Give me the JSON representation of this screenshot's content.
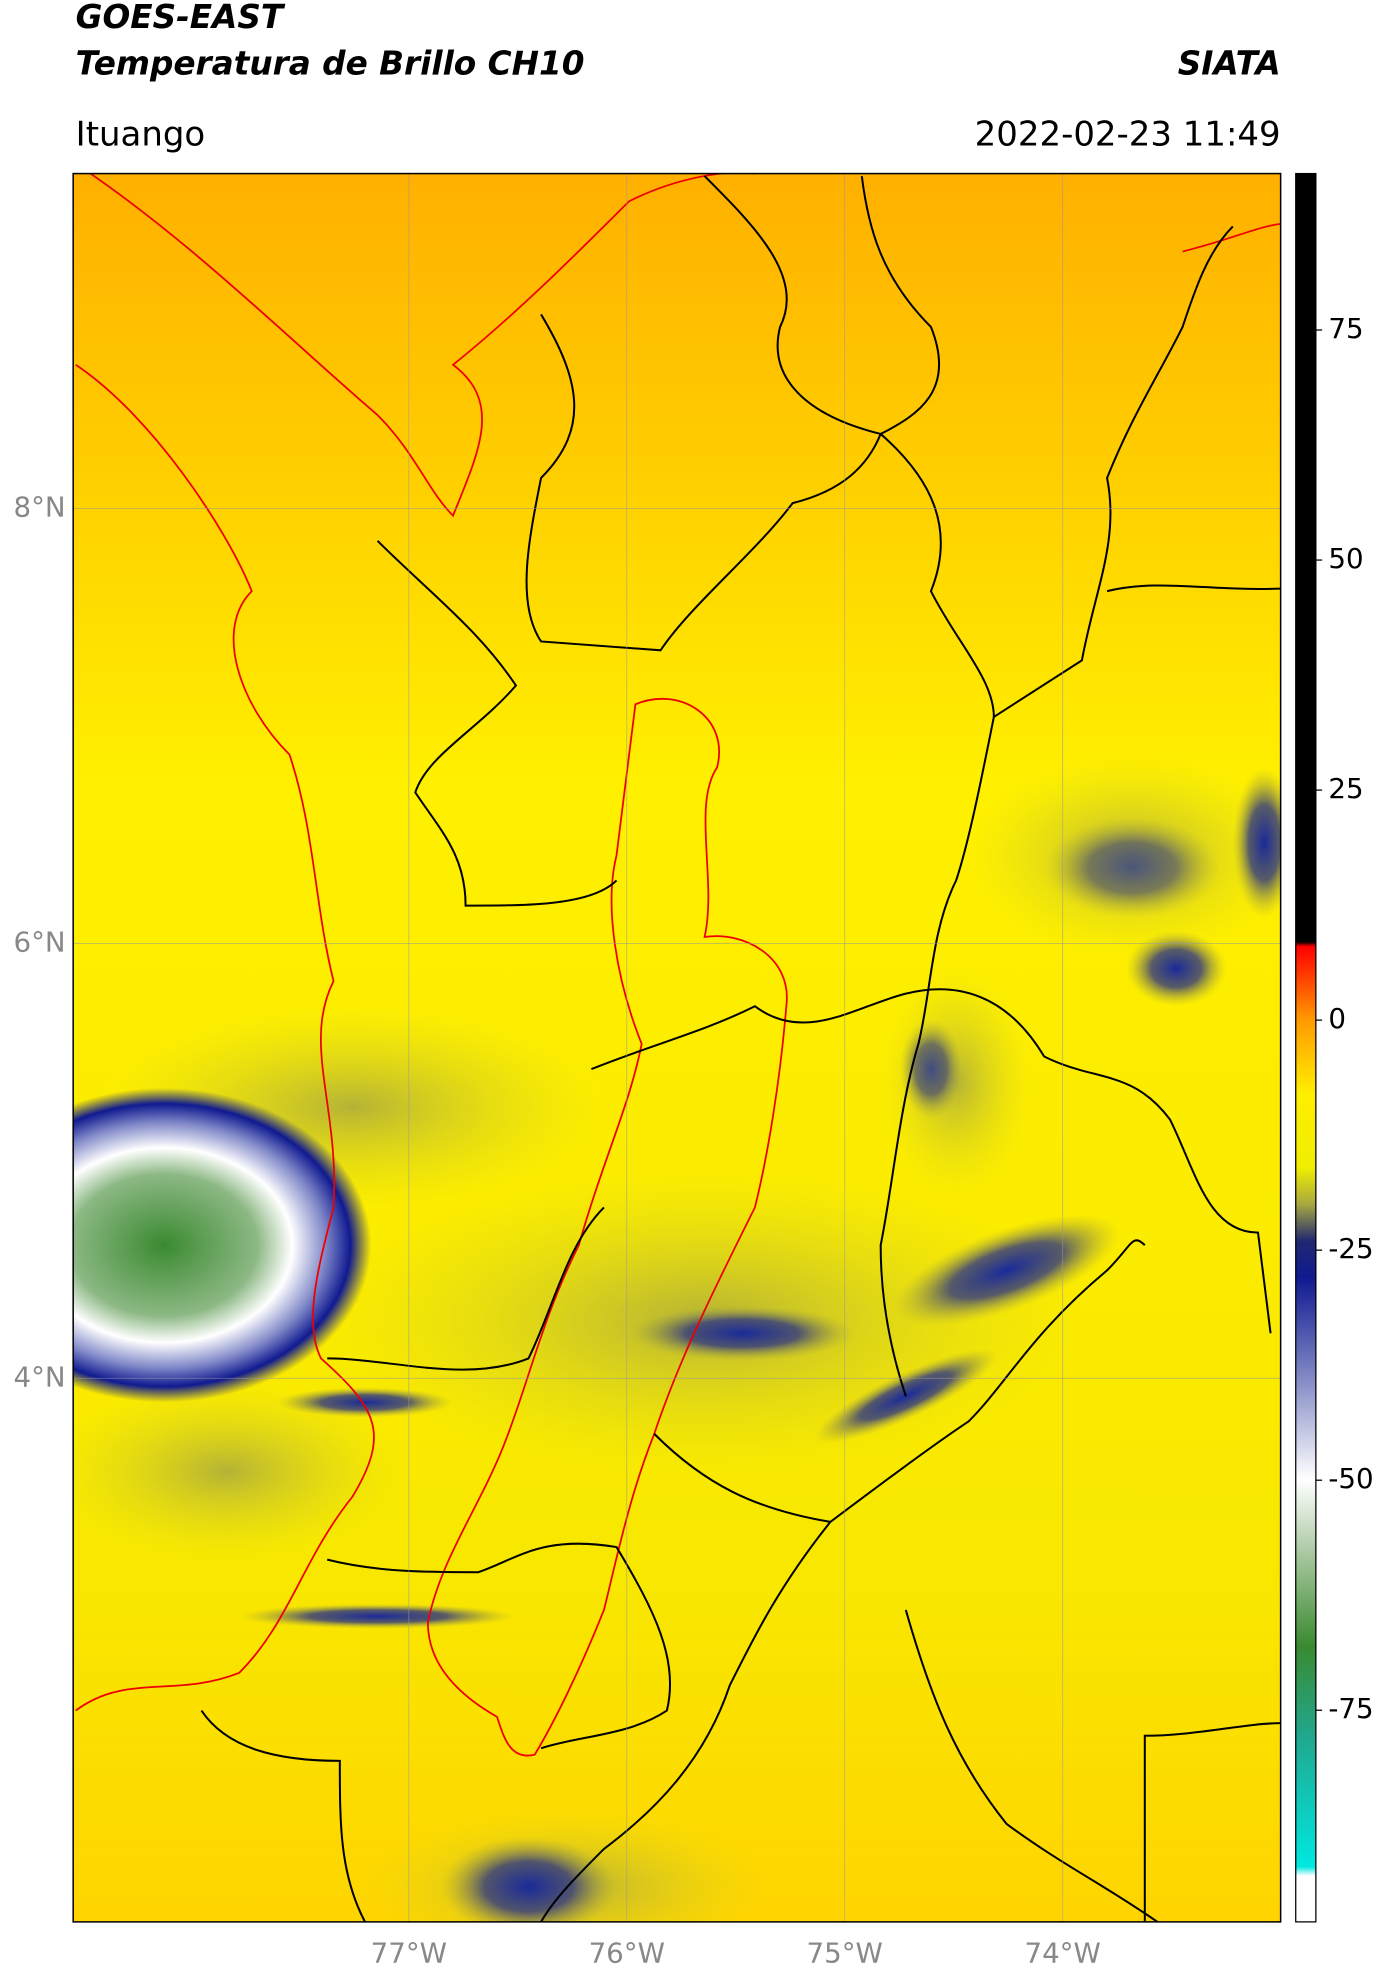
{
  "chart_data": {
    "type": "map",
    "title": "GOES-EAST",
    "subtitle": "Temperatura de Brillo CH10",
    "source": "SIATA",
    "location": "Ituango",
    "datetime": "2022-02-23 11:49",
    "xlim": [
      -78.54,
      -73.0
    ],
    "ylim": [
      1.5,
      9.54
    ],
    "xticks": [
      {
        "value": -77,
        "label": "77°W"
      },
      {
        "value": -76,
        "label": "76°W"
      },
      {
        "value": -75,
        "label": "75°W"
      },
      {
        "value": -74,
        "label": "74°W"
      }
    ],
    "yticks": [
      {
        "value": 4,
        "label": "4°N"
      },
      {
        "value": 6,
        "label": "6°N"
      },
      {
        "value": 8,
        "label": "8°N"
      }
    ],
    "grid": true,
    "colorbar": {
      "clim": [
        -98,
        92
      ],
      "ticks": [
        75,
        50,
        25,
        0,
        -25,
        -50,
        -75
      ],
      "colormap": [
        {
          "value": 92,
          "color": "#000000"
        },
        {
          "value": 8.5,
          "color": "#000000"
        },
        {
          "value": 8,
          "color": "#ff0000"
        },
        {
          "value": 0,
          "color": "#ff9a00"
        },
        {
          "value": -8,
          "color": "#ffee00"
        },
        {
          "value": -16,
          "color": "#f0ee00"
        },
        {
          "value": -20,
          "color": "#a8a840"
        },
        {
          "value": -24,
          "color": "#202870"
        },
        {
          "value": -28,
          "color": "#101a90"
        },
        {
          "value": -38,
          "color": "#7880c0"
        },
        {
          "value": -50,
          "color": "#ffffff"
        },
        {
          "value": -58,
          "color": "#a8c8a0"
        },
        {
          "value": -68,
          "color": "#3a8a30"
        },
        {
          "value": -78,
          "color": "#20a890"
        },
        {
          "value": -92,
          "color": "#00e8e0"
        },
        {
          "value": -93,
          "color": "#ffffff"
        },
        {
          "value": -98,
          "color": "#ffffff"
        }
      ]
    }
  }
}
